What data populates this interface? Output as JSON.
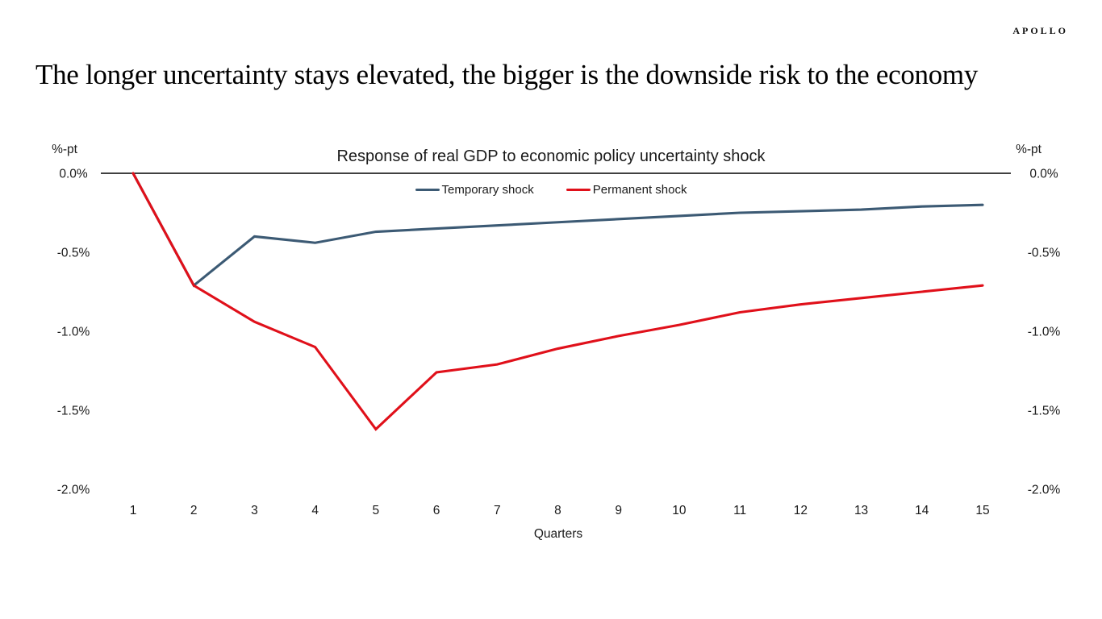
{
  "header": {
    "logo": "APOLLO",
    "title": "The longer uncertainty stays elevated, the bigger is the downside risk to the economy"
  },
  "chart": {
    "title": "Response of real GDP to economic policy uncertainty shock",
    "unit_label_left": "%-pt",
    "unit_label_right": "%-pt"
  },
  "chart_data": {
    "type": "line",
    "title": "Response of real GDP to economic policy uncertainty shock",
    "xlabel": "Quarters",
    "ylabel": "%-pt",
    "x": [
      1,
      2,
      3,
      4,
      5,
      6,
      7,
      8,
      9,
      10,
      11,
      12,
      13,
      14,
      15
    ],
    "series": [
      {
        "name": "Temporary shock",
        "color": "#3c5a74",
        "values": [
          0.0,
          -0.71,
          -0.4,
          -0.44,
          -0.37,
          -0.35,
          -0.33,
          -0.31,
          -0.29,
          -0.27,
          -0.25,
          -0.24,
          -0.23,
          -0.21,
          -0.2
        ]
      },
      {
        "name": "Permanent shock",
        "color": "#e0101a",
        "values": [
          0.0,
          -0.71,
          -0.94,
          -1.1,
          -1.62,
          -1.26,
          -1.21,
          -1.11,
          -1.03,
          -0.96,
          -0.88,
          -0.83,
          -0.79,
          -0.75,
          -0.71
        ]
      }
    ],
    "y_ticks": [
      {
        "label": "0.0%",
        "value": 0.0
      },
      {
        "label": "-0.5%",
        "value": -0.5
      },
      {
        "label": "-1.0%",
        "value": -1.0
      },
      {
        "label": "-1.5%",
        "value": -1.5
      },
      {
        "label": "-2.0%",
        "value": -2.0
      }
    ],
    "ylim": [
      -2.0,
      0.0
    ],
    "grid": false,
    "legend_position": "top",
    "axis_color": "#000000"
  }
}
